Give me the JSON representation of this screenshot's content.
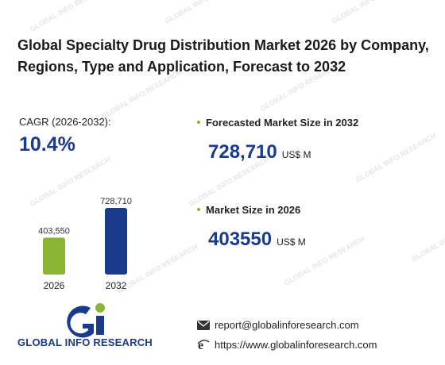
{
  "title": "Global Specialty Drug Distribution Market 2026 by Company, Regions, Type and Application, Forecast to 2032",
  "cagr": {
    "label_prefix": "CAGR",
    "label_period": " (2026-2032):",
    "value": "10.4%"
  },
  "stats": [
    {
      "label": "Forecasted Market Size in 2032",
      "value": "728,710",
      "unit": "US$ M"
    },
    {
      "label": "Market Size in 2026",
      "value": "403550",
      "unit": "US$ M"
    }
  ],
  "chart_data": {
    "type": "bar",
    "categories": [
      "2026",
      "2032"
    ],
    "values": [
      403550,
      728710
    ],
    "value_labels": [
      "403,550",
      "728,710"
    ],
    "colors": [
      "#8ab533",
      "#1a3a8c"
    ],
    "ylim": [
      0,
      728710
    ]
  },
  "logo": {
    "text": "GLOBAL INFO RESEARCH",
    "icon": "gi-logo-icon"
  },
  "watermark_text": "GLOBAL INFO RESEARCH",
  "contact": {
    "email": "report@globalinforesearch.com",
    "website": "https://www.globalinforesearch.com",
    "email_icon": "envelope-icon",
    "website_icon": "browser-e-icon"
  },
  "colors": {
    "accent_blue": "#1a3a8c",
    "accent_green": "#8ab533"
  }
}
